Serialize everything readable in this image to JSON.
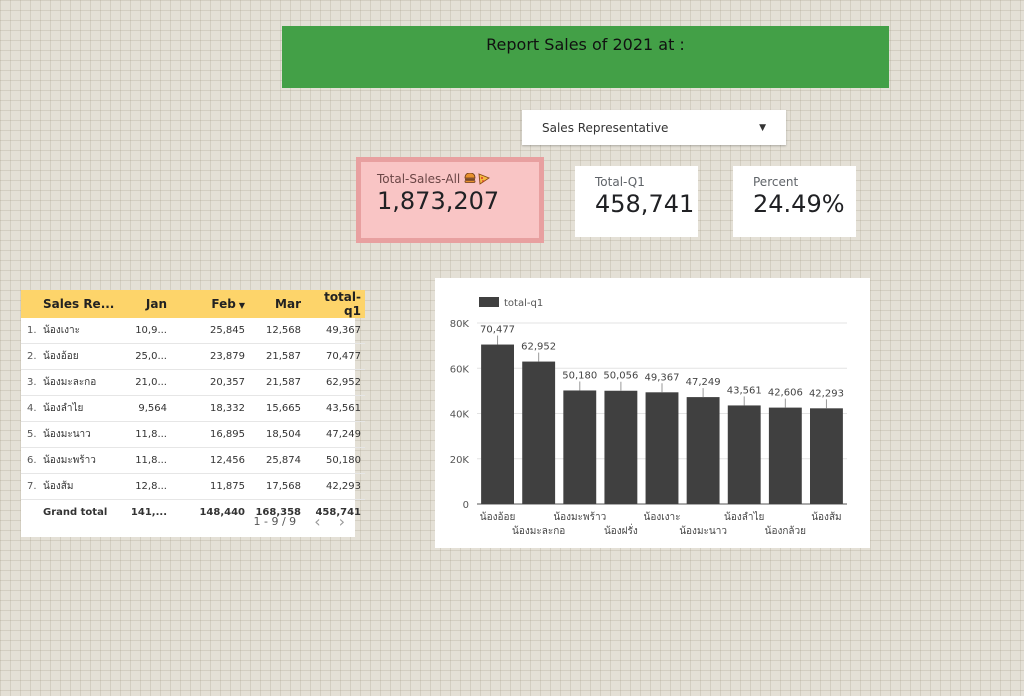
{
  "header": {
    "title": "Report Sales of  2021 at :"
  },
  "filter": {
    "label": "Sales Representative"
  },
  "scorecards": {
    "total_sales": {
      "label": "Total-Sales-All",
      "value": "1,873,207",
      "emoji": [
        "burger-icon",
        "pizza-icon"
      ]
    },
    "total_q1": {
      "label": "Total-Q1",
      "value": "458,741"
    },
    "percent": {
      "label": "Percent",
      "value": "24.49%"
    }
  },
  "table": {
    "columns": [
      "Sales Re...",
      "Jan",
      "Feb",
      "Mar",
      "total-q1"
    ],
    "sort_column": "Feb",
    "rows": [
      {
        "idx": "1.",
        "name": "น้องเงาะ",
        "jan": "10,9...",
        "feb": "25,845",
        "mar": "12,568",
        "total": "49,367"
      },
      {
        "idx": "2.",
        "name": "น้องอ้อย",
        "jan": "25,0...",
        "feb": "23,879",
        "mar": "21,587",
        "total": "70,477"
      },
      {
        "idx": "3.",
        "name": "น้องมะละกอ",
        "jan": "21,0...",
        "feb": "20,357",
        "mar": "21,587",
        "total": "62,952"
      },
      {
        "idx": "4.",
        "name": "น้องลำไย",
        "jan": "9,564",
        "feb": "18,332",
        "mar": "15,665",
        "total": "43,561"
      },
      {
        "idx": "5.",
        "name": "น้องมะนาว",
        "jan": "11,8...",
        "feb": "16,895",
        "mar": "18,504",
        "total": "47,249"
      },
      {
        "idx": "6.",
        "name": "น้องมะพร้าว",
        "jan": "11,8...",
        "feb": "12,456",
        "mar": "25,874",
        "total": "50,180"
      },
      {
        "idx": "7.",
        "name": "น้องส้ม",
        "jan": "12,8...",
        "feb": "11,875",
        "mar": "17,568",
        "total": "42,293"
      }
    ],
    "grand_total": {
      "label": "Grand total",
      "jan": "141,...",
      "feb": "148,440",
      "mar": "168,358",
      "total": "458,741"
    },
    "pagination": "1 - 9 / 9"
  },
  "chart_data": {
    "type": "bar",
    "legend": "total-q1",
    "legend_position": "top-left",
    "categories": [
      "น้องอ้อย",
      "น้องมะละกอ",
      "น้องมะพร้าว",
      "น้องฝรั่ง",
      "น้องเงาะ",
      "น้องมะนาว",
      "น้องลำไย",
      "น้องกล้วย",
      "น้องส้ม"
    ],
    "series": [
      {
        "name": "total-q1",
        "values": [
          70477,
          62952,
          50180,
          50056,
          49367,
          47249,
          43561,
          42606,
          42293
        ],
        "color": "#404040"
      }
    ],
    "value_labels": [
      "70,477",
      "62,952",
      "50,180",
      "50,056",
      "49,367",
      "47,249",
      "43,561",
      "42,606",
      "42,293"
    ],
    "yticks": [
      "0",
      "20K",
      "40K",
      "60K",
      "80K"
    ],
    "ylim": [
      0,
      80000
    ],
    "grid": true,
    "xlabel": "",
    "ylabel": ""
  },
  "colors": {
    "banner": "#43a047",
    "table_header": "#fdd46a",
    "highlight_card": "#f9c5c5",
    "bar": "#404040"
  }
}
